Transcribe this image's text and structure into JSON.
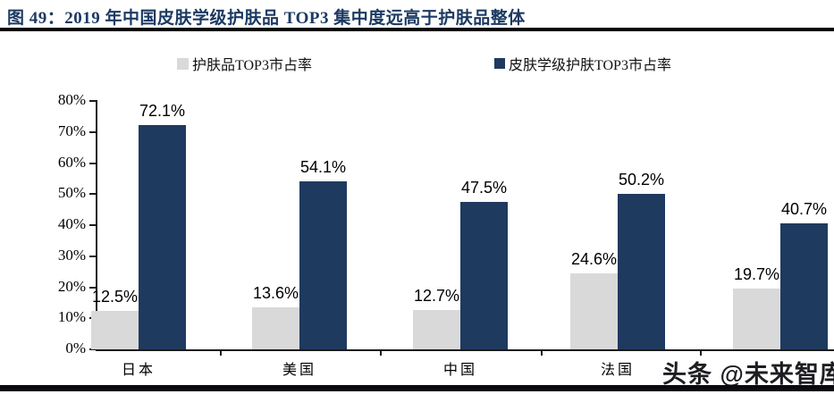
{
  "figure": {
    "title": "图 49：2019 年中国皮肤学级护肤品 TOP3 集中度远高于护肤品整体"
  },
  "legend": {
    "items": [
      {
        "label": "护肤品TOP3市占率",
        "color": "#D9D9D9"
      },
      {
        "label": "皮肤学级护肤TOP3市占率",
        "color": "#1F3A5F"
      }
    ]
  },
  "chart_data": {
    "type": "bar",
    "categories": [
      "日本",
      "美国",
      "中国",
      "法国",
      ""
    ],
    "series": [
      {
        "name": "护肤品TOP3市占率",
        "color": "#D9D9D9",
        "values": [
          12.5,
          13.6,
          12.7,
          24.6,
          19.7
        ],
        "labels": [
          "12.5%",
          "13.6%",
          "12.7%",
          "24.6%",
          "19.7%"
        ]
      },
      {
        "name": "皮肤学级护肤TOP3市占率",
        "color": "#1F3A5F",
        "values": [
          72.1,
          54.1,
          47.5,
          50.2,
          40.7
        ],
        "labels": [
          "72.1%",
          "54.1%",
          "47.5%",
          "50.2%",
          "40.7%"
        ]
      }
    ],
    "ylabel": "",
    "xlabel": "",
    "ylim": [
      0,
      80
    ],
    "ytick_labels": [
      "0%",
      "10%",
      "20%",
      "30%",
      "40%",
      "50%",
      "60%",
      "70%",
      "80%"
    ],
    "grid": false,
    "legend_position": "top",
    "note": "fifth category label hidden behind watermark"
  },
  "watermark": {
    "text": "头条 @未来智库"
  },
  "colors": {
    "title": "#1C3A63",
    "bar_gray": "#D9D9D9",
    "bar_navy": "#1F3A5F",
    "axis": "#1a1a1a",
    "underline": "#050505",
    "bottom_strip": "#0a0a12"
  }
}
